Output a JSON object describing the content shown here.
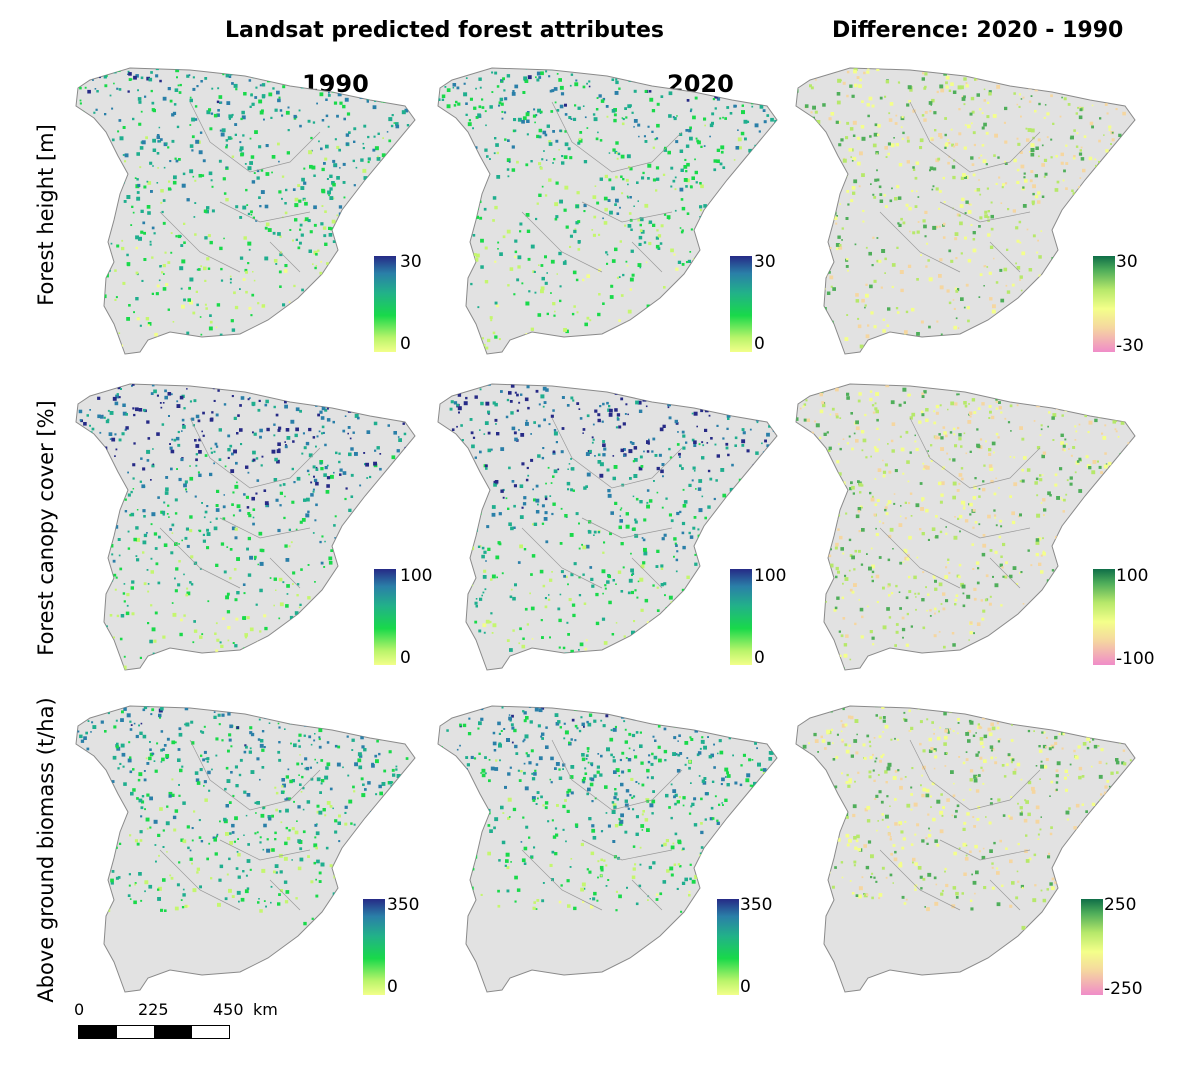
{
  "headings": {
    "left": "Landsat predicted forest attributes",
    "right": "Difference: 2020 - 1990"
  },
  "years": {
    "first": "1990",
    "second": "2020"
  },
  "rows": [
    {
      "label": "Forest height [m]",
      "abs_scale": {
        "max": "30",
        "min": "0"
      },
      "diff_scale": {
        "max": "30",
        "min": "-30"
      }
    },
    {
      "label": "Forest canopy cover [%]",
      "abs_scale": {
        "max": "100",
        "min": "0"
      },
      "diff_scale": {
        "max": "100",
        "min": "-100"
      }
    },
    {
      "label": "Above ground biomass (t/ha)",
      "abs_scale": {
        "max": "350",
        "min": "0"
      },
      "diff_scale": {
        "max": "250",
        "min": "-250"
      }
    }
  ],
  "scalebar": {
    "ticks": [
      "0",
      "225",
      "450"
    ],
    "unit": "km"
  },
  "colors": {
    "land": "#e2e2e2",
    "border": "#8a8a8a",
    "abs_low": "#f2ff8a",
    "abs_mid": "#19d94a",
    "abs_high": "#262a86",
    "diff_low": "#f08cc8",
    "diff_mid": "#f4ff8a",
    "diff_high": "#0f6e48"
  }
}
